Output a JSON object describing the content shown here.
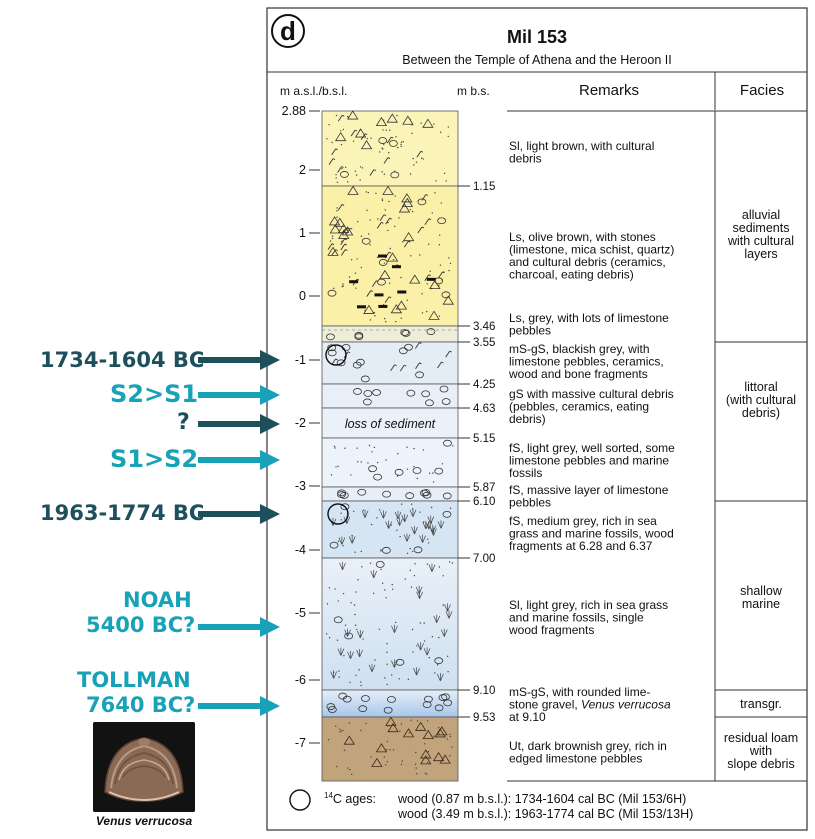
{
  "panel": {
    "letter": "d",
    "title": "Mil 153",
    "subtitle": "Between the Temple of Athena and the Heroon II",
    "col_left_header": "m a.s.l./b.s.l.",
    "col_mid_header": "m b.s.",
    "col_remarks_header": "Remarks",
    "col_facies_header": "Facies"
  },
  "elevation_ticks": [
    "2.88",
    "2",
    "1",
    "0",
    "-1",
    "-2",
    "-3",
    "-4",
    "-5",
    "-6",
    "-7"
  ],
  "depth_ticks": [
    "1.15",
    "3.46",
    "3.55",
    "4.25",
    "4.63",
    "5.15",
    "5.87",
    "6.10",
    "7.00",
    "9.10",
    "9.53"
  ],
  "layers": [
    {
      "depth": "0-1.15",
      "remark": [
        "Sl, light brown, with cultural",
        "debris"
      ]
    },
    {
      "depth": "1.15-3.46",
      "remark": [
        "Ls, olive brown, with stones",
        "(limestone, mica schist, quartz)",
        "and cultural debris (ceramics,",
        "charcoal, eating debris)"
      ]
    },
    {
      "depth": "3.46-3.55",
      "remark": [
        "Ls, grey, with lots of limestone",
        "pebbles"
      ]
    },
    {
      "depth": "3.55-4.25",
      "remark": [
        "mS-gS, blackish grey, with",
        "limestone pebbles, ceramics,",
        "wood and bone fragments"
      ]
    },
    {
      "depth": "4.25-4.63",
      "remark": [
        "gS with massive cultural debris",
        "(pebbles, ceramics, eating",
        "debris)"
      ]
    },
    {
      "depth": "4.63-5.15",
      "remark": [],
      "inline_label": "loss of sediment"
    },
    {
      "depth": "5.15-5.87",
      "remark": [
        "fS, light grey, well sorted, some",
        "limestone pebbles and marine",
        "fossils"
      ]
    },
    {
      "depth": "5.87-6.10",
      "remark": [
        "fS, massive layer of limestone",
        "pebbles"
      ]
    },
    {
      "depth": "6.10-7.00",
      "remark": [
        "fS, medium grey, rich in sea",
        "grass and marine fossils, wood",
        "fragments at 6.28 and 6.37"
      ]
    },
    {
      "depth": "7.00-9.10",
      "remark": [
        "Sl, light grey, rich in sea grass",
        "and marine fossils, single",
        "wood fragments"
      ]
    },
    {
      "depth": "9.10-9.53",
      "remark": [
        "mS-gS, with rounded lime-",
        "stone gravel, ",
        "Venus verrucosa",
        "at 9.10"
      ]
    },
    {
      "depth": "9.53-",
      "remark": [
        "Ut, dark brownish grey, rich in",
        "edged limestone pebbles"
      ]
    }
  ],
  "facies": [
    [
      "alluvial",
      "sediments",
      "with cultural",
      "layers"
    ],
    [
      "littoral",
      "(with cultural",
      "debris)"
    ],
    [
      "shallow",
      "marine"
    ],
    [
      "transgr."
    ],
    [
      "residual loam",
      "with",
      "slope debris"
    ]
  ],
  "footnote": {
    "label": "14C ages:",
    "label_sup": "14",
    "label_rest": "C ages:",
    "line1": "wood (0.87 m b.s.l.): 1734-1604 cal BC (Mil 153/6H)",
    "line2": "wood (3.49 m b.s.l.): 1963-1774 cal BC (Mil 153/13H)"
  },
  "annotations": [
    {
      "text": "1734-1604 BC",
      "style": "dark"
    },
    {
      "text": "S2>S1",
      "style": "cyan"
    },
    {
      "text": "?",
      "style": "dark"
    },
    {
      "text": "S1>S2",
      "style": "cyan"
    },
    {
      "text": "1963-1774 BC",
      "style": "dark"
    },
    {
      "text": "NOAH",
      "style": "cyan"
    },
    {
      "text": "5400 BC?",
      "style": "cyan"
    },
    {
      "text": "TOLLMAN",
      "style": "cyan"
    },
    {
      "text": "7640 BC?",
      "style": "cyan"
    }
  ],
  "shell_caption": "Venus verrucosa",
  "colors": {
    "dark_annotation": "#1d4f5c",
    "cyan_annotation": "#17a2b8",
    "alluvial_fill": "#fbf3b0",
    "littoral_fill": "#e8f0f8",
    "marine_fill": "#dbe8f4",
    "transgr_fill": "#b7d1ec",
    "residual_fill": "#c2a47c"
  }
}
